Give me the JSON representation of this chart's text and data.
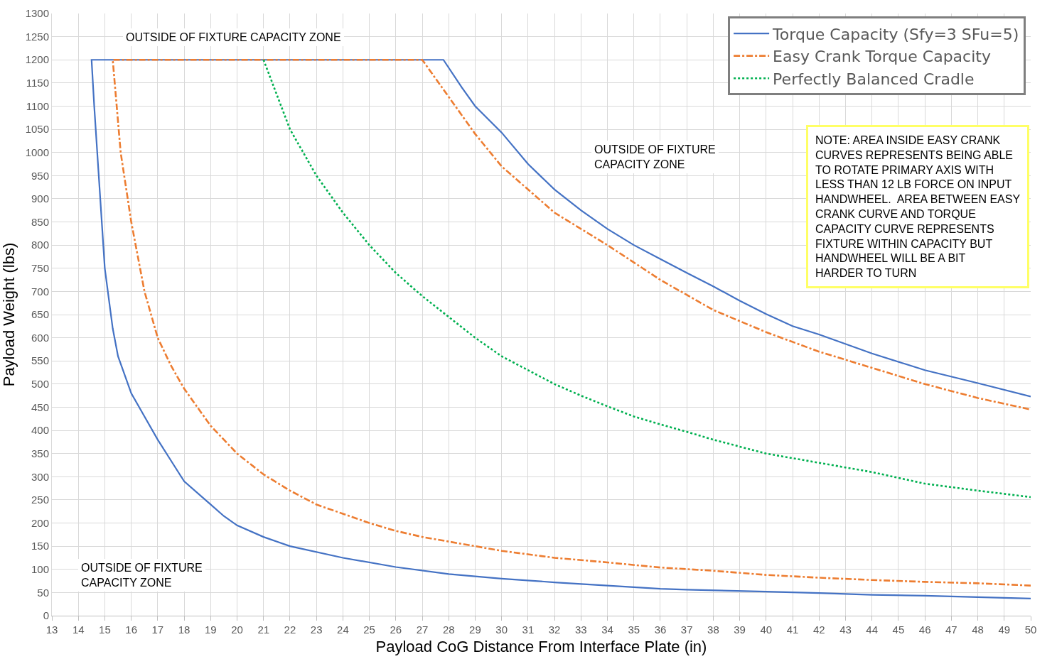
{
  "chart_data": {
    "type": "line",
    "xlabel": "Payload CoG Distance From Interface Plate (in)",
    "ylabel": "Payload Weight (lbs)",
    "xlim": [
      13,
      50
    ],
    "ylim": [
      0,
      1300
    ],
    "xticks": [
      13,
      14,
      15,
      16,
      17,
      18,
      19,
      20,
      21,
      22,
      23,
      24,
      25,
      26,
      27,
      28,
      29,
      30,
      31,
      32,
      33,
      34,
      35,
      36,
      37,
      38,
      39,
      40,
      41,
      42,
      43,
      44,
      45,
      46,
      47,
      48,
      49,
      50
    ],
    "yticks": [
      0,
      50,
      100,
      150,
      200,
      250,
      300,
      350,
      400,
      450,
      500,
      550,
      600,
      650,
      700,
      750,
      800,
      850,
      900,
      950,
      1000,
      1050,
      1100,
      1150,
      1200,
      1250,
      1300
    ],
    "grid": true,
    "legend": "top right",
    "marker": "none",
    "series": [
      {
        "name": "Torque Capacity (Sfy=3 SFu=5)",
        "color": "#4472c4",
        "line_style": "solid",
        "x": [
          50,
          48,
          46,
          44,
          42,
          40,
          37,
          36,
          34,
          32,
          30,
          28,
          26,
          24,
          22,
          21,
          20,
          19.5,
          19,
          18,
          17.5,
          17,
          16.5,
          16,
          15.5,
          15.3,
          15,
          14.6,
          14.5,
          27.8,
          28.5,
          29,
          30,
          31,
          32,
          33,
          34,
          35,
          36,
          37,
          38,
          39,
          40,
          41,
          42,
          44,
          46,
          48,
          50
        ],
        "values": [
          37,
          40,
          43,
          45,
          49,
          52,
          56,
          58,
          65,
          72,
          80,
          90,
          105,
          125,
          150,
          170,
          195,
          215,
          240,
          290,
          335,
          380,
          430,
          480,
          560,
          620,
          750,
          1100,
          1200,
          1200,
          1140,
          1100,
          1043,
          975,
          920,
          875,
          835,
          800,
          770,
          740,
          711,
          680,
          651,
          625,
          607,
          566,
          530,
          502,
          473
        ]
      },
      {
        "name": "Easy Crank Torque Capacity",
        "color": "#ed7d31",
        "line_style": "dashdot",
        "x": [
          50,
          48,
          46,
          44,
          42,
          40,
          38,
          36,
          34,
          32,
          30,
          29,
          28,
          27,
          26,
          25,
          24,
          23,
          22,
          21,
          20,
          19,
          18,
          17.5,
          17,
          16.5,
          16,
          15.6,
          15.3,
          27,
          28,
          29,
          30,
          32,
          34,
          36,
          38,
          40,
          42,
          44,
          46,
          48,
          50
        ],
        "values": [
          65,
          70,
          73,
          77,
          82,
          88,
          97,
          104,
          115,
          125,
          140,
          150,
          160,
          170,
          183,
          200,
          220,
          240,
          270,
          305,
          350,
          410,
          490,
          540,
          600,
          700,
          850,
          1000,
          1200,
          1200,
          1120,
          1040,
          970,
          870,
          800,
          725,
          660,
          612,
          570,
          535,
          500,
          470,
          445
        ]
      },
      {
        "name": "Perfectly Balanced Cradle",
        "color": "#00b050",
        "line_style": "dotted",
        "x": [
          21,
          22,
          23,
          24,
          25,
          26,
          27,
          28,
          29,
          30,
          31,
          32,
          33,
          34,
          35,
          36,
          37,
          38,
          39,
          40,
          42,
          44,
          46,
          48,
          50
        ],
        "values": [
          1200,
          1050,
          950,
          870,
          800,
          740,
          690,
          645,
          600,
          560,
          530,
          500,
          475,
          452,
          430,
          413,
          397,
          380,
          365,
          350,
          330,
          310,
          285,
          270,
          256
        ]
      }
    ],
    "annotations": [
      "OUTSIDE OF FIXTURE CAPACITY ZONE",
      "OUTSIDE OF FIXTURE\nCAPACITY ZONE",
      "OUTSIDE OF FIXTURE\nCAPACITY ZONE",
      "NOTE: AREA INSIDE EASY CRANK\nCURVES REPRESENTS BEING ABLE\nTO ROTATE PRIMARY AXIS WITH\nLESS THAN 12 LB FORCE ON INPUT\nHANDWHEEL.  AREA BETWEEN EASY\nCRANK CURVE AND TORQUE\nCAPACITY CURVE REPRESENTS\nFIXTURE WITHIN CAPACITY BUT\nHANDWHEEL WILL BE A BIT\nHARDER TO TURN"
    ]
  }
}
